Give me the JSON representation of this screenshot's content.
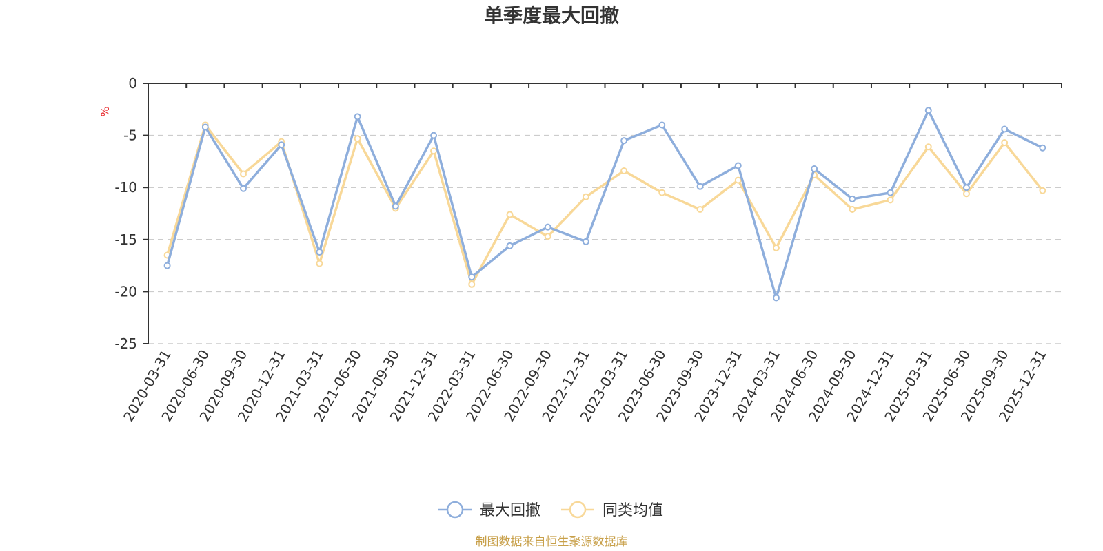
{
  "chart_data": {
    "type": "line",
    "title": "单季度最大回撤",
    "ylabel": "%",
    "xlabel": "",
    "ylim": [
      -25,
      0
    ],
    "yticks": [
      0,
      -5,
      -10,
      -15,
      -20,
      -25
    ],
    "grid": true,
    "legend_position": "bottom-center",
    "categories": [
      "2020-03-31",
      "2020-06-30",
      "2020-09-30",
      "2020-12-31",
      "2021-03-31",
      "2021-06-30",
      "2021-09-30",
      "2021-12-31",
      "2022-03-31",
      "2022-06-30",
      "2022-09-30",
      "2022-12-31",
      "2023-03-31",
      "2023-06-30",
      "2023-09-30",
      "2023-12-31",
      "2024-03-31",
      "2024-06-30",
      "2024-09-30",
      "2024-12-31",
      "2025-03-31",
      "2025-06-30",
      "2025-09-30",
      "2025-12-31"
    ],
    "series": [
      {
        "name": "最大回撤",
        "color": "#8eaedc",
        "values": [
          -17.5,
          -4.2,
          -10.1,
          -5.9,
          -16.2,
          -3.2,
          -11.8,
          -5.0,
          -18.6,
          -15.6,
          -13.8,
          -15.2,
          -5.5,
          -4.0,
          -9.9,
          -7.9,
          -20.6,
          -8.2,
          -11.1,
          -10.5,
          -2.6,
          -10.0,
          -4.4,
          -6.2
        ]
      },
      {
        "name": "同类均值",
        "color": "#f8d898",
        "values": [
          -16.5,
          -4.0,
          -8.7,
          -5.6,
          -17.3,
          -5.3,
          -12.0,
          -6.5,
          -19.3,
          -12.6,
          -14.7,
          -10.9,
          -8.4,
          -10.5,
          -12.1,
          -9.3,
          -15.8,
          -8.8,
          -12.1,
          -11.2,
          -6.1,
          -10.6,
          -5.7,
          -10.3
        ]
      }
    ],
    "source_note": "制图数据来自恒生聚源数据库"
  }
}
